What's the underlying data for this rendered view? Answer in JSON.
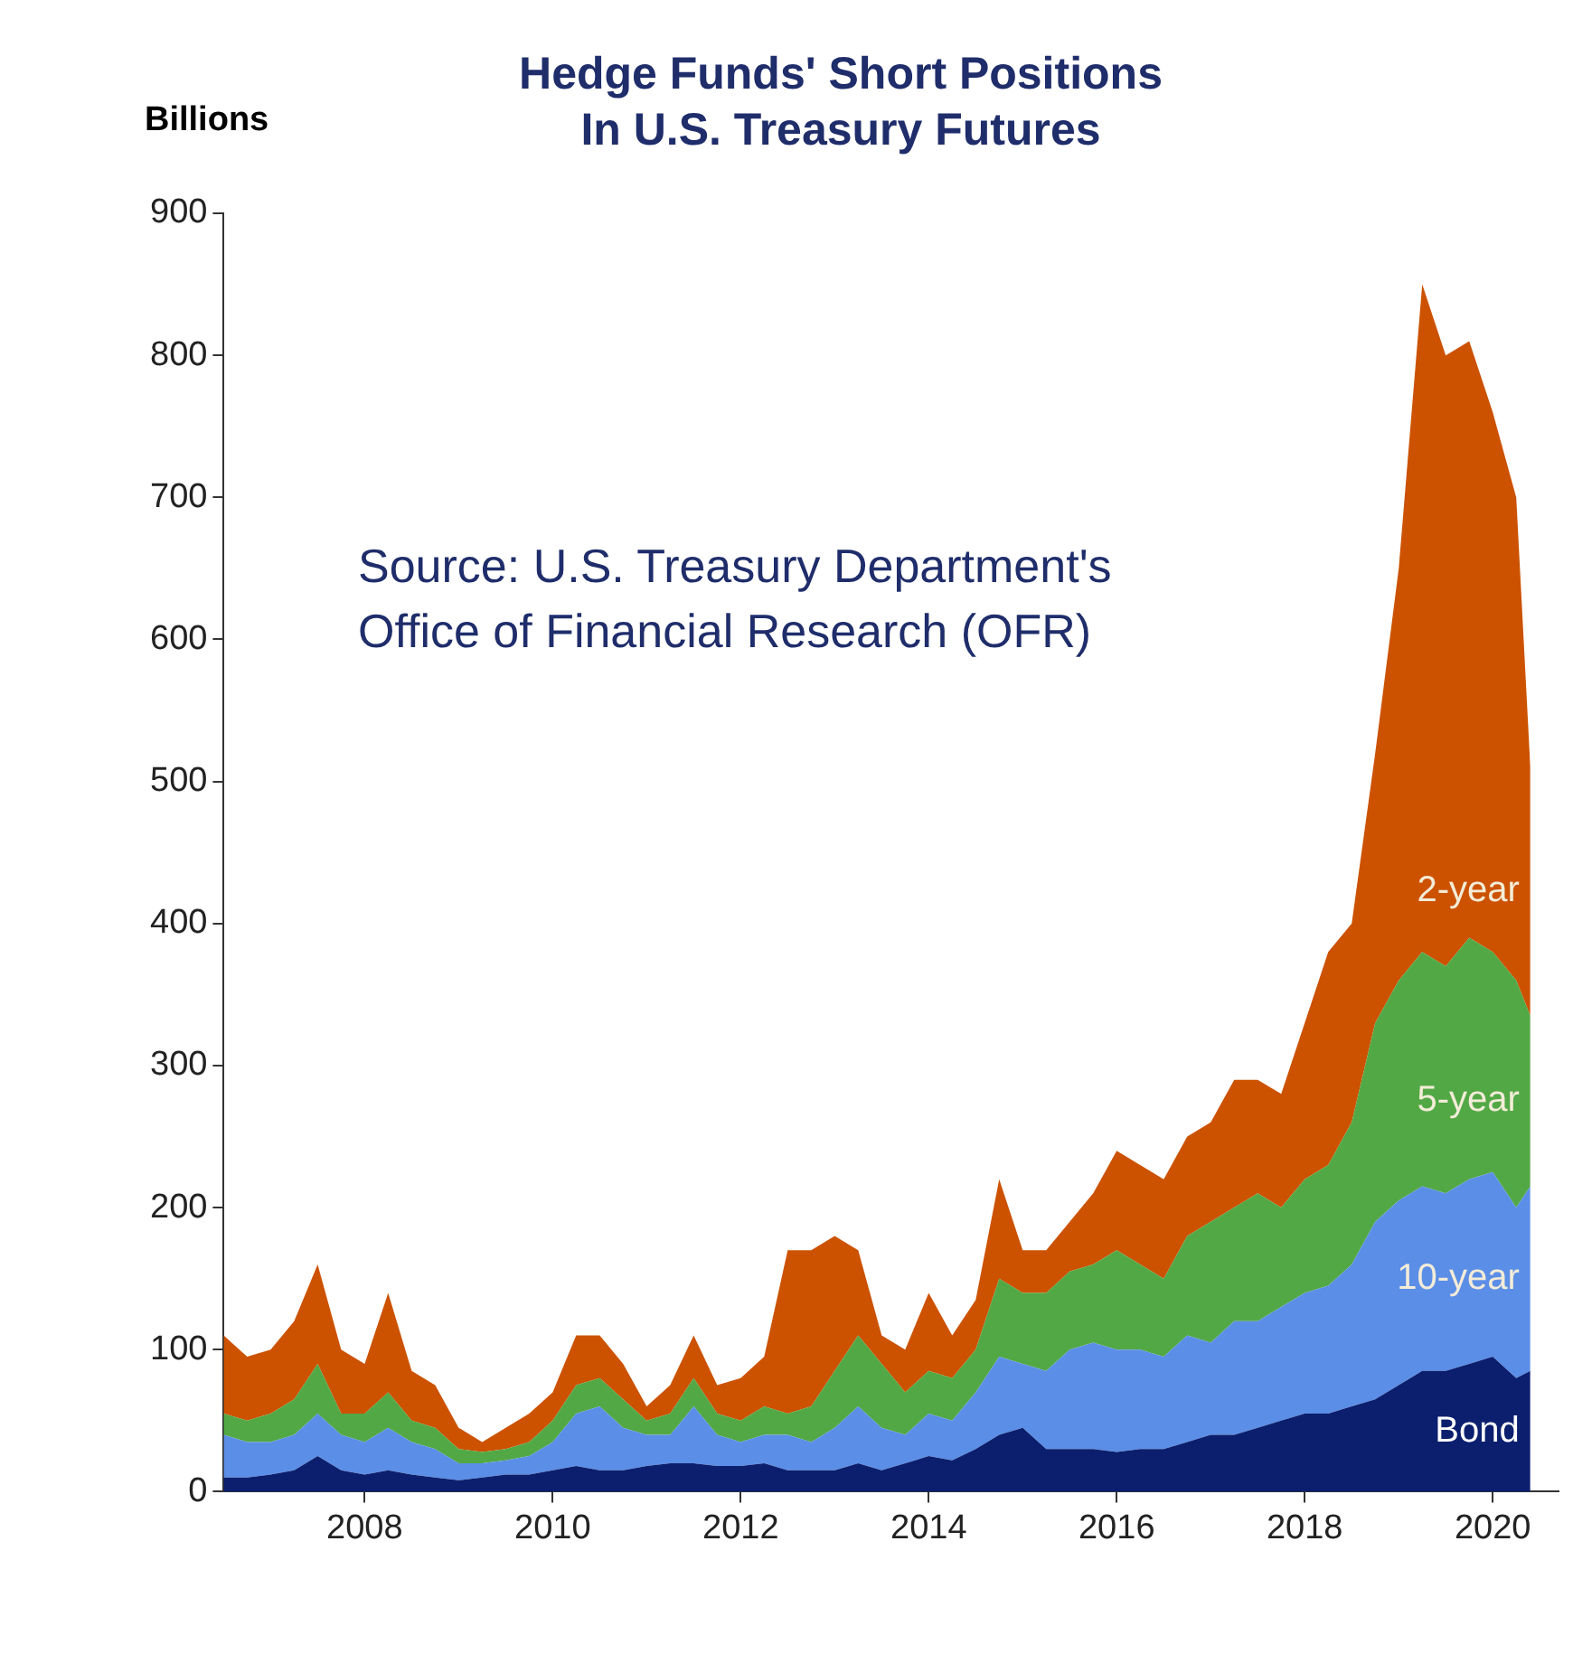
{
  "chart_data": {
    "type": "area",
    "stacked": true,
    "title": "Hedge Funds' Short Positions In U.S. Treasury Futures",
    "ylabel": "Billions",
    "annotations": [
      "Source: U.S. Treasury Department's Office of Financial Research (OFR)"
    ],
    "x": [
      2006.5,
      2006.75,
      2007,
      2007.25,
      2007.5,
      2007.75,
      2008,
      2008.25,
      2008.5,
      2008.75,
      2009,
      2009.25,
      2009.5,
      2009.75,
      2010,
      2010.25,
      2010.5,
      2010.75,
      2011,
      2011.25,
      2011.5,
      2011.75,
      2012,
      2012.25,
      2012.5,
      2012.75,
      2013,
      2013.25,
      2013.5,
      2013.75,
      2014,
      2014.25,
      2014.5,
      2014.75,
      2015,
      2015.25,
      2015.5,
      2015.75,
      2016,
      2016.25,
      2016.5,
      2016.75,
      2017,
      2017.25,
      2017.5,
      2017.75,
      2018,
      2018.25,
      2018.5,
      2018.75,
      2019,
      2019.25,
      2019.5,
      2019.75,
      2020,
      2020.25,
      2020.4
    ],
    "series": [
      {
        "name": "Bond",
        "color": "#0b1f6e",
        "values": [
          10,
          10,
          12,
          15,
          25,
          15,
          12,
          15,
          12,
          10,
          8,
          10,
          12,
          12,
          15,
          18,
          15,
          15,
          18,
          20,
          20,
          18,
          18,
          20,
          15,
          15,
          15,
          20,
          15,
          20,
          25,
          22,
          30,
          40,
          45,
          30,
          30,
          30,
          28,
          30,
          30,
          35,
          40,
          40,
          45,
          50,
          55,
          55,
          60,
          65,
          75,
          85,
          85,
          90,
          95,
          80,
          85
        ]
      },
      {
        "name": "10-year",
        "color": "#5b8ee6",
        "values": [
          30,
          25,
          23,
          25,
          30,
          25,
          23,
          30,
          23,
          20,
          12,
          10,
          10,
          13,
          20,
          37,
          45,
          30,
          22,
          20,
          40,
          22,
          17,
          20,
          25,
          20,
          30,
          40,
          30,
          20,
          30,
          28,
          40,
          55,
          45,
          55,
          70,
          75,
          72,
          70,
          65,
          75,
          65,
          80,
          75,
          80,
          85,
          90,
          100,
          125,
          130,
          130,
          125,
          130,
          130,
          120,
          130
        ]
      },
      {
        "name": "5-year",
        "color": "#52a845",
        "values": [
          15,
          15,
          20,
          25,
          35,
          15,
          20,
          25,
          15,
          15,
          10,
          8,
          8,
          10,
          15,
          20,
          20,
          20,
          10,
          15,
          20,
          15,
          15,
          20,
          15,
          25,
          40,
          50,
          45,
          30,
          30,
          30,
          30,
          55,
          50,
          55,
          55,
          55,
          70,
          60,
          55,
          70,
          85,
          80,
          90,
          70,
          80,
          85,
          100,
          140,
          155,
          165,
          160,
          170,
          155,
          160,
          120
        ]
      },
      {
        "name": "2-year",
        "color": "#cc5200",
        "values": [
          55,
          45,
          45,
          55,
          70,
          45,
          35,
          70,
          35,
          30,
          15,
          7,
          15,
          20,
          20,
          35,
          30,
          25,
          10,
          20,
          30,
          20,
          30,
          35,
          115,
          110,
          95,
          60,
          20,
          30,
          55,
          30,
          35,
          70,
          30,
          30,
          35,
          50,
          70,
          70,
          70,
          70,
          70,
          90,
          80,
          80,
          110,
          150,
          140,
          190,
          290,
          470,
          430,
          420,
          380,
          340,
          175
        ]
      }
    ],
    "xlim": [
      2006.5,
      2020.7
    ],
    "xticks": [
      2008,
      2010,
      2012,
      2014,
      2016,
      2018,
      2020
    ],
    "ylim": [
      0,
      900
    ],
    "yticks": [
      0,
      100,
      200,
      300,
      400,
      500,
      600,
      700,
      800,
      900
    ],
    "grid": false,
    "legend": false
  }
}
